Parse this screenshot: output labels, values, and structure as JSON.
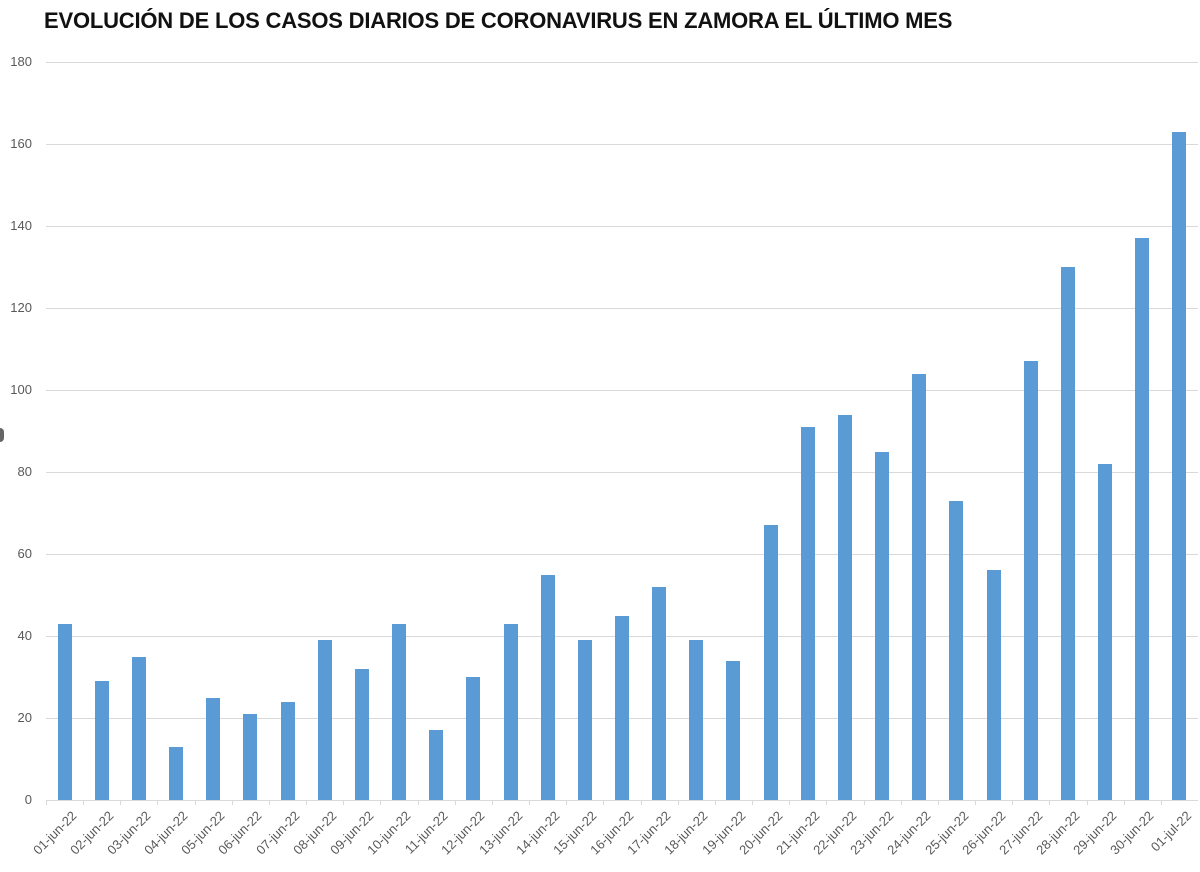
{
  "title": "EVOLUCIÓN DE LOS CASOS DIARIOS DE CORONAVIRUS EN ZAMORA EL ÚLTIMO MES",
  "colors": {
    "bar": "#5b9bd5",
    "grid": "#d9d9d9",
    "axis_text": "#595959"
  },
  "chart_data": {
    "type": "bar",
    "title": "EVOLUCIÓN DE LOS CASOS DIARIOS DE CORONAVIRUS EN ZAMORA EL ÚLTIMO MES",
    "xlabel": "",
    "ylabel": "",
    "ylim": [
      0,
      180
    ],
    "yticks": [
      0,
      20,
      40,
      60,
      80,
      100,
      120,
      140,
      160,
      180
    ],
    "grid": true,
    "legend": null,
    "categories": [
      "01-jun-22",
      "02-jun-22",
      "03-jun-22",
      "04-jun-22",
      "05-jun-22",
      "06-jun-22",
      "07-jun-22",
      "08-jun-22",
      "09-jun-22",
      "10-jun-22",
      "11-jun-22",
      "12-jun-22",
      "13-jun-22",
      "14-jun-22",
      "15-jun-22",
      "16-jun-22",
      "17-jun-22",
      "18-jun-22",
      "19-jun-22",
      "20-jun-22",
      "21-jun-22",
      "22-jun-22",
      "23-jun-22",
      "24-jun-22",
      "25-jun-22",
      "26-jun-22",
      "27-jun-22",
      "28-jun-22",
      "29-jun-22",
      "30-jun-22",
      "01-jul-22"
    ],
    "values": [
      43,
      29,
      35,
      13,
      25,
      21,
      24,
      39,
      32,
      43,
      17,
      30,
      43,
      55,
      39,
      45,
      52,
      39,
      34,
      67,
      91,
      94,
      85,
      104,
      73,
      56,
      107,
      130,
      82,
      137,
      163
    ]
  }
}
